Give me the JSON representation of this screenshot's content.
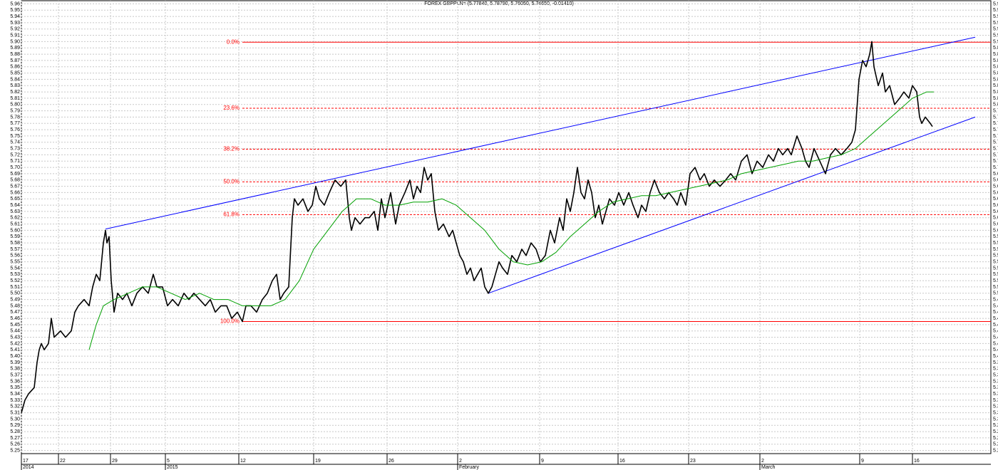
{
  "chart_data": {
    "type": "line",
    "title": "FOREX GBPPLN= (5.77840, 5.78790, 5.76050, 5.76650, -0.01410)",
    "xlim": [
      0,
      136
    ],
    "ylim": [
      5.245,
      5.965
    ],
    "grid": true,
    "xticks": [
      {
        "value": 0,
        "label": "17"
      },
      {
        "value": 5.2,
        "label": "22"
      },
      {
        "value": 12.5,
        "label": "29"
      },
      {
        "value": 20.2,
        "label": "5"
      },
      {
        "value": 30.5,
        "label": "12"
      },
      {
        "value": 41,
        "label": "19"
      },
      {
        "value": 51.3,
        "label": "26"
      },
      {
        "value": 61.2,
        "label": "2"
      },
      {
        "value": 72.7,
        "label": "9"
      },
      {
        "value": 83.7,
        "label": "16"
      },
      {
        "value": 93.6,
        "label": "23"
      },
      {
        "value": 103.6,
        "label": "2"
      },
      {
        "value": 117.6,
        "label": "9"
      },
      {
        "value": 125,
        "label": "16"
      }
    ],
    "x_period_labels": [
      {
        "value": 0,
        "label": "2014"
      },
      {
        "value": 20.2,
        "label": "2015"
      },
      {
        "value": 61.2,
        "label": "February"
      },
      {
        "value": 103.6,
        "label": "March"
      }
    ],
    "yticks": [
      5.25,
      5.26,
      5.27,
      5.28,
      5.29,
      {
        "value": 5.3,
        "label": "5.30"
      },
      5.31,
      5.32,
      5.33,
      5.34,
      5.35,
      5.36,
      5.37,
      5.38,
      5.39,
      {
        "value": 5.4,
        "label": "5.40"
      },
      5.41,
      5.42,
      5.43,
      5.44,
      5.45,
      5.46,
      5.47,
      5.48,
      5.49,
      {
        "value": 5.5,
        "label": "5.50"
      },
      5.51,
      5.52,
      5.53,
      5.54,
      5.55,
      5.56,
      5.57,
      5.58,
      5.59,
      {
        "value": 5.6,
        "label": "5.60"
      },
      5.61,
      5.62,
      5.63,
      5.64,
      5.65,
      5.66,
      5.67,
      5.68,
      5.69,
      {
        "value": 5.7,
        "label": "5.70"
      },
      5.71,
      5.72,
      5.73,
      5.74,
      5.75,
      5.76,
      5.77,
      5.78,
      5.79,
      {
        "value": 5.8,
        "label": "5.80"
      },
      5.81,
      5.82,
      5.83,
      5.84,
      5.85,
      5.86,
      5.87,
      5.88,
      5.89,
      {
        "value": 5.9,
        "label": "5.90"
      },
      5.91,
      5.92,
      5.93,
      5.94,
      5.95,
      5.96
    ],
    "series": [
      {
        "color": "#000000",
        "x": [
          0,
          0.5,
          1,
          1.8,
          2.2,
          2.5,
          2.8,
          3.2,
          3.8,
          4.2,
          4.6,
          5.5,
          6.2,
          7,
          7.5,
          8,
          8.8,
          9.5,
          10,
          10.5,
          11,
          11.5,
          11.8,
          12,
          12.3,
          12.6,
          13,
          13.5,
          14.2,
          14.8,
          15.5,
          16.2,
          17,
          17.8,
          18.5,
          19,
          19.8,
          20.5,
          21.2,
          22,
          22.8,
          23.5,
          24.2,
          25,
          25.8,
          26.5,
          27.2,
          28,
          28.8,
          29.5,
          30.3,
          31,
          31.5,
          32.2,
          33,
          33.8,
          34.5,
          35.2,
          35.8,
          36.3,
          36.8,
          37.5,
          38,
          38.3,
          38.8,
          39.5,
          40.2,
          40.8,
          41.3,
          41.8,
          42.5,
          43.2,
          44,
          44.8,
          45.5,
          46,
          46.3,
          46.8,
          47.5,
          48.2,
          48.8,
          49.5,
          50,
          50.5,
          51,
          51.8,
          52.5,
          53,
          53.8,
          54.5,
          55,
          55.5,
          56,
          56.5,
          57,
          57.5,
          58,
          58.5,
          59.2,
          60,
          60.5,
          61,
          61.5,
          62,
          62.5,
          63,
          63.5,
          64,
          64.5,
          65,
          65.5,
          66,
          66.5,
          67,
          67.5,
          68.2,
          68.8,
          69.5,
          70.2,
          70.8,
          71.5,
          72.2,
          72.8,
          73.5,
          74.2,
          74.8,
          75.5,
          76,
          76.5,
          77,
          77.5,
          78,
          78.5,
          79,
          79.5,
          80,
          80.5,
          81,
          81.5,
          82,
          82.5,
          83.2,
          83.8,
          84.5,
          85.2,
          85.8,
          86.5,
          87,
          87.6,
          88.2,
          88.8,
          89.5,
          90.2,
          90.8,
          91.5,
          92,
          92.5,
          93.2,
          93.8,
          94.5,
          95.2,
          95.8,
          96.5,
          97.2,
          98,
          98.8,
          99.5,
          100.2,
          101,
          101.8,
          102.5,
          103.2,
          104,
          104.8,
          105.5,
          106.2,
          106.8,
          107.5,
          108,
          108.8,
          109.5,
          110,
          110.5,
          111.2,
          112,
          112.8,
          113.5,
          114.2,
          115,
          115.8,
          116.5,
          117,
          117.5,
          118,
          118.5,
          119,
          119.3,
          119.6,
          120.2,
          120.8,
          121.2,
          121.8,
          122.5,
          123.2,
          123.8,
          124.5,
          125,
          125.6,
          126,
          126.3,
          126.8,
          127.5,
          127.8
        ],
        "values": [
          5.31,
          5.33,
          5.34,
          5.35,
          5.39,
          5.41,
          5.42,
          5.41,
          5.42,
          5.46,
          5.43,
          5.44,
          5.43,
          5.44,
          5.47,
          5.48,
          5.49,
          5.48,
          5.51,
          5.53,
          5.52,
          5.58,
          5.6,
          5.58,
          5.59,
          5.52,
          5.47,
          5.5,
          5.49,
          5.5,
          5.48,
          5.5,
          5.51,
          5.5,
          5.53,
          5.51,
          5.51,
          5.48,
          5.49,
          5.48,
          5.5,
          5.49,
          5.5,
          5.49,
          5.48,
          5.49,
          5.47,
          5.48,
          5.48,
          5.46,
          5.47,
          5.455,
          5.48,
          5.48,
          5.47,
          5.49,
          5.5,
          5.52,
          5.53,
          5.49,
          5.5,
          5.51,
          5.62,
          5.65,
          5.64,
          5.65,
          5.63,
          5.64,
          5.67,
          5.65,
          5.64,
          5.66,
          5.68,
          5.67,
          5.68,
          5.62,
          5.6,
          5.62,
          5.61,
          5.62,
          5.62,
          5.63,
          5.6,
          5.65,
          5.62,
          5.66,
          5.61,
          5.64,
          5.66,
          5.68,
          5.65,
          5.67,
          5.66,
          5.7,
          5.68,
          5.69,
          5.63,
          5.6,
          5.61,
          5.59,
          5.6,
          5.58,
          5.56,
          5.55,
          5.53,
          5.54,
          5.52,
          5.53,
          5.54,
          5.51,
          5.5,
          5.51,
          5.53,
          5.55,
          5.54,
          5.53,
          5.56,
          5.55,
          5.57,
          5.56,
          5.58,
          5.57,
          5.55,
          5.56,
          5.6,
          5.58,
          5.62,
          5.6,
          5.65,
          5.63,
          5.66,
          5.7,
          5.66,
          5.65,
          5.68,
          5.66,
          5.62,
          5.64,
          5.61,
          5.63,
          5.65,
          5.64,
          5.66,
          5.64,
          5.66,
          5.64,
          5.62,
          5.64,
          5.63,
          5.66,
          5.68,
          5.66,
          5.65,
          5.66,
          5.65,
          5.64,
          5.66,
          5.64,
          5.69,
          5.7,
          5.68,
          5.69,
          5.67,
          5.68,
          5.67,
          5.68,
          5.69,
          5.68,
          5.71,
          5.72,
          5.69,
          5.71,
          5.7,
          5.72,
          5.71,
          5.73,
          5.72,
          5.73,
          5.72,
          5.75,
          5.73,
          5.71,
          5.7,
          5.73,
          5.71,
          5.69,
          5.72,
          5.73,
          5.72,
          5.73,
          5.74,
          5.76,
          5.84,
          5.87,
          5.86,
          5.88,
          5.9,
          5.86,
          5.83,
          5.85,
          5.82,
          5.83,
          5.8,
          5.81,
          5.82,
          5.81,
          5.83,
          5.82,
          5.78,
          5.77,
          5.78,
          5.77,
          5.765
        ]
      },
      {
        "color": "#00a000",
        "x": [
          9.5,
          10.5,
          11.5,
          13,
          15,
          17,
          19,
          21,
          23,
          25,
          27,
          29,
          31,
          33,
          35,
          37,
          39,
          41,
          43,
          45,
          47,
          49,
          51,
          53,
          55,
          57,
          59,
          61,
          63,
          65,
          67,
          69,
          71,
          73,
          75,
          77,
          79,
          81,
          83,
          85,
          87,
          89,
          91,
          93,
          95,
          97,
          99,
          101,
          103,
          105,
          107,
          109,
          111,
          113,
          115,
          117,
          119,
          121,
          123,
          125,
          127,
          128
        ],
        "values": [
          5.41,
          5.45,
          5.48,
          5.49,
          5.5,
          5.51,
          5.51,
          5.5,
          5.49,
          5.5,
          5.49,
          5.49,
          5.48,
          5.48,
          5.48,
          5.49,
          5.52,
          5.57,
          5.6,
          5.63,
          5.65,
          5.65,
          5.64,
          5.64,
          5.645,
          5.645,
          5.65,
          5.64,
          5.62,
          5.6,
          5.57,
          5.55,
          5.545,
          5.55,
          5.565,
          5.59,
          5.61,
          5.63,
          5.645,
          5.65,
          5.655,
          5.655,
          5.66,
          5.665,
          5.67,
          5.675,
          5.68,
          5.69,
          5.695,
          5.7,
          5.705,
          5.71,
          5.71,
          5.715,
          5.72,
          5.73,
          5.75,
          5.77,
          5.79,
          5.81,
          5.82,
          5.82
        ]
      }
    ],
    "trendlines": [
      {
        "color": "#0000ff",
        "x": [
          11.8,
          133.8
        ],
        "values": [
          5.602,
          5.907
        ]
      },
      {
        "color": "#0000ff",
        "x": [
          65.5,
          133.8
        ],
        "values": [
          5.5,
          5.78
        ]
      }
    ],
    "fib_color": "#ff0000",
    "fib_start": 31,
    "fib_levels": [
      {
        "label": "0.0%",
        "value": 5.899
      },
      {
        "label": "23.6%",
        "value": 5.794
      },
      {
        "label": "38.2%",
        "value": 5.729
      },
      {
        "label": "50.0%",
        "value": 5.677
      },
      {
        "label": "61.8%",
        "value": 5.625
      },
      {
        "label": "100.0%",
        "value": 5.455
      }
    ]
  }
}
